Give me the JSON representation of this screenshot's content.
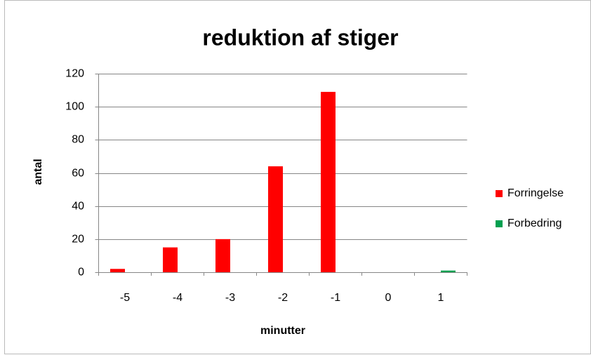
{
  "chart_data": {
    "type": "bar",
    "title": "reduktion af stiger",
    "xlabel": "minutter",
    "ylabel": "antal",
    "categories": [
      "-5",
      "-4",
      "-3",
      "-2",
      "-1",
      "0",
      "1"
    ],
    "series": [
      {
        "name": "Forringelse",
        "color": "#ff0000",
        "values": [
          2,
          15,
          20,
          64,
          109,
          0,
          0
        ]
      },
      {
        "name": "Forbedring",
        "color": "#00a050",
        "values": [
          0,
          0,
          0,
          0,
          0,
          0,
          1
        ]
      }
    ],
    "ylim": [
      0,
      120
    ],
    "yticks": [
      0,
      20,
      40,
      60,
      80,
      100,
      120
    ],
    "grid": true,
    "legend": "right"
  }
}
